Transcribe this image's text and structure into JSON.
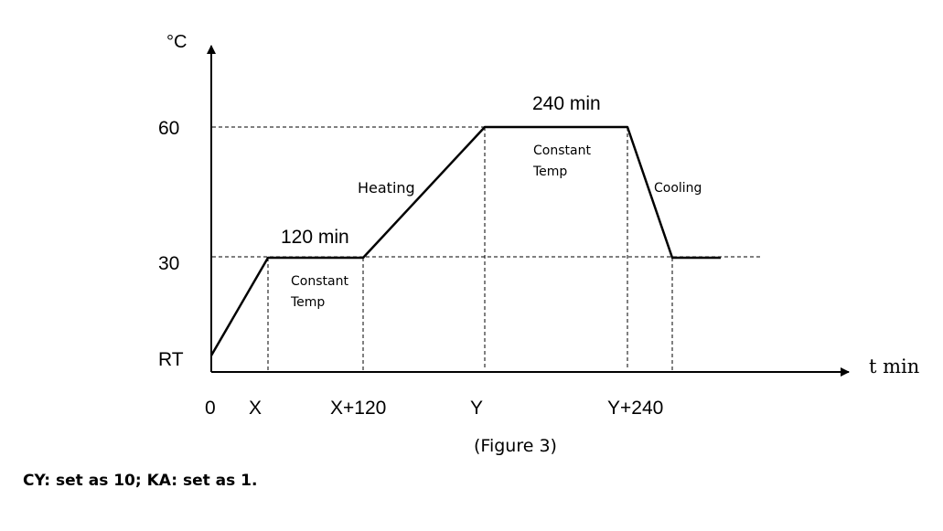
{
  "axes": {
    "y_unit": "°C",
    "x_unit": "t min"
  },
  "y_ticks": {
    "top": "60",
    "middle": "30",
    "bottom": "RT"
  },
  "x_ticks": {
    "origin": "0",
    "x": "X",
    "x_plus": "X+120",
    "y": "Y",
    "y_plus": "Y+240"
  },
  "segments": {
    "hold_1_duration": "120 min",
    "hold_2_duration": "240 min",
    "hold_1_label_line1": "Constant",
    "hold_1_label_line2": "Temp",
    "hold_2_label_line1": "Constant",
    "hold_2_label_line2": "Temp",
    "heating_label": "Heating",
    "cooling_label": "Cooling"
  },
  "caption": "(Figure 3)",
  "note": "CY: set as 10; KA: set as 1."
}
